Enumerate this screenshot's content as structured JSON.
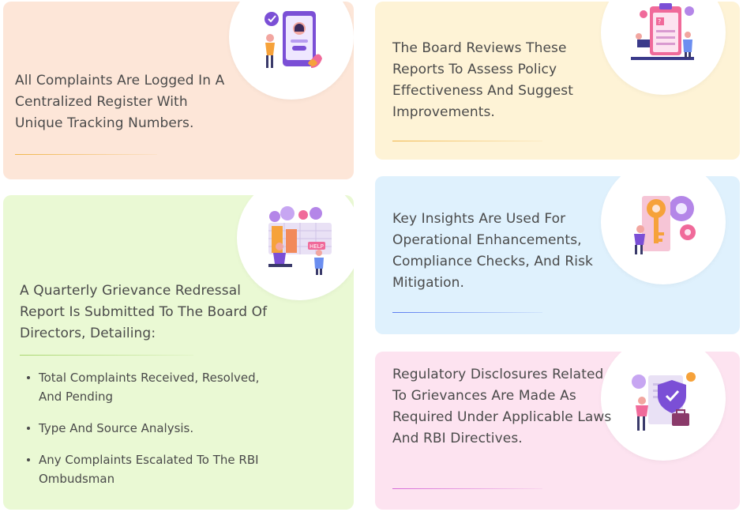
{
  "cards": [
    {
      "text": "All Complaints Are Logged In A Centralized Register With Unique Tracking Numbers.",
      "icon": "complaint-register-icon"
    },
    {
      "text": "A Quarterly Grievance Redressal Report Is Submitted To The Board Of Directors, Detailing:",
      "icon": "help-desk-icon",
      "bullets": [
        "Total Complaints Received, Resolved, And Pending",
        "Type And Source Analysis.",
        "Any Complaints Escalated To The RBI Ombudsman"
      ]
    },
    {
      "text": "The Board Reviews These Reports To Assess Policy Effectiveness And Suggest Improvements.",
      "icon": "report-review-icon"
    },
    {
      "text": "Key Insights Are Used For Operational Enhancements, Compliance Checks, And Risk Mitigation.",
      "icon": "key-insights-icon"
    },
    {
      "text": "Regulatory Disclosures Related To Grievances Are Made As Required Under Applicable Laws And RBI Directives.",
      "icon": "regulatory-shield-icon"
    }
  ],
  "colors": {
    "card1": "#fde6d8",
    "card2": "#eaf9d4",
    "card3": "#fef3d6",
    "card4": "#dff1fd",
    "card5": "#fde3f0"
  }
}
